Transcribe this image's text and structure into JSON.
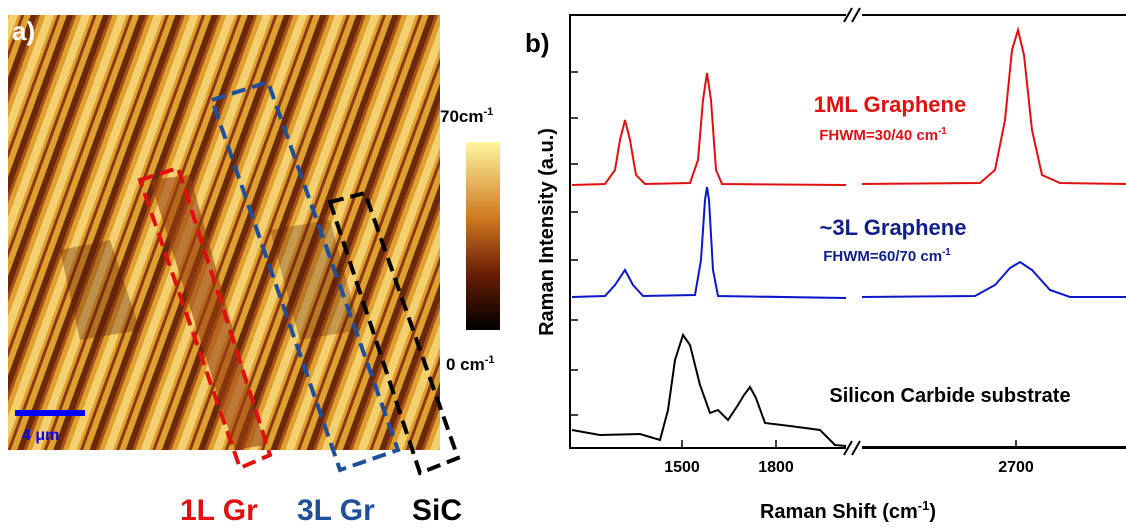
{
  "panel_a": {
    "label": "a)",
    "colorbar": {
      "max": {
        "text": "70cm",
        "sup": "-1"
      },
      "min": {
        "text": "0 cm",
        "sup": "-1"
      }
    },
    "scale_bar": "4 μm",
    "regions": [
      "1L Gr",
      "3L Gr",
      "SiC"
    ]
  },
  "panel_b": {
    "label": "b)",
    "y_label": "Raman Intensity (a.u.)",
    "x_label": {
      "text": "Raman Shift (cm",
      "sup": "-1",
      "suffix": ")"
    },
    "x_ticks": [
      1500,
      1800,
      2700
    ],
    "spectra": [
      {
        "name": "1ML Graphene",
        "fwhm": {
          "text": "FHWM=30/40 cm",
          "sup": "-1"
        }
      },
      {
        "name": "~3L Graphene",
        "fwhm": {
          "text": "FHWM=60/70 cm",
          "sup": "-1"
        }
      },
      {
        "name": "Silicon Carbide substrate"
      }
    ]
  }
}
